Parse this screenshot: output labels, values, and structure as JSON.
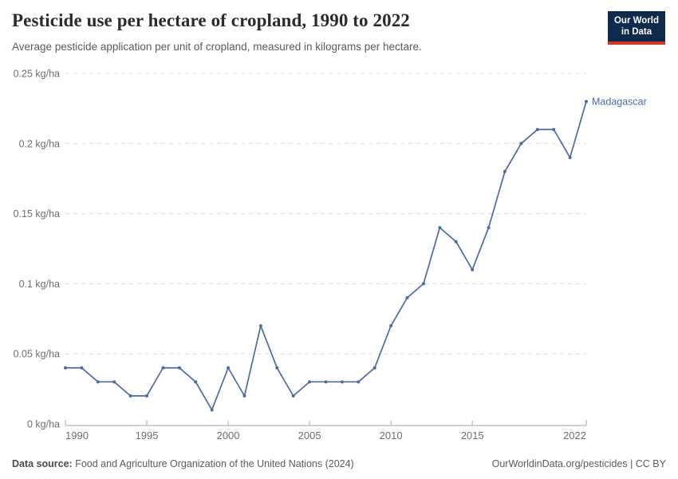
{
  "header": {
    "title": "Pesticide use per hectare of cropland, 1990 to 2022",
    "subtitle": "Average pesticide application per unit of cropland, measured in kilograms per hectare.",
    "logo": {
      "line1": "Our World",
      "line2": "in Data"
    }
  },
  "chart_data": {
    "type": "line",
    "title": "Pesticide use per hectare of cropland, 1990 to 2022",
    "ylabel": "kg/ha",
    "x": [
      1990,
      1991,
      1992,
      1993,
      1994,
      1995,
      1996,
      1997,
      1998,
      1999,
      2000,
      2001,
      2002,
      2003,
      2004,
      2005,
      2006,
      2007,
      2008,
      2009,
      2010,
      2011,
      2012,
      2013,
      2014,
      2015,
      2016,
      2017,
      2018,
      2019,
      2020,
      2021,
      2022
    ],
    "series": [
      {
        "name": "Madagascar",
        "values": [
          0.04,
          0.04,
          0.03,
          0.03,
          0.02,
          0.02,
          0.04,
          0.04,
          0.03,
          0.01,
          0.04,
          0.02,
          0.07,
          0.04,
          0.02,
          0.03,
          0.03,
          0.03,
          0.03,
          0.04,
          0.07,
          0.09,
          0.1,
          0.14,
          0.13,
          0.11,
          0.14,
          0.18,
          0.2,
          0.21,
          0.21,
          0.19,
          0.23
        ]
      }
    ],
    "ylim": [
      0,
      0.25
    ],
    "yticks": [
      {
        "value": 0,
        "label": "0 kg/ha"
      },
      {
        "value": 0.05,
        "label": "0.05 kg/ha"
      },
      {
        "value": 0.1,
        "label": "0.1 kg/ha"
      },
      {
        "value": 0.15,
        "label": "0.15 kg/ha"
      },
      {
        "value": 0.2,
        "label": "0.2 kg/ha"
      },
      {
        "value": 0.25,
        "label": "0.25 kg/ha"
      }
    ],
    "xticks": [
      1990,
      1995,
      2000,
      2005,
      2010,
      2015,
      2022
    ],
    "grid": "horizontal-dashed",
    "legend_position": "end-of-line-label",
    "line_color": "#4c6ba5",
    "gridline_color": "#dcdcdc",
    "axis_color": "#a5a5a5"
  },
  "footer": {
    "datasource_label": "Data source:",
    "datasource_text": " Food and Agriculture Organization of the United Nations (2024)",
    "credit": "OurWorldinData.org/pesticides | CC BY"
  }
}
